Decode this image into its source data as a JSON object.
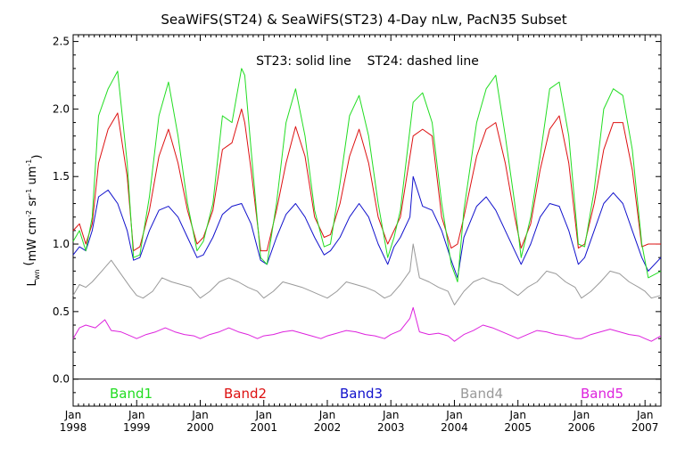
{
  "chart_data": {
    "type": "line",
    "title": "SeaWiFS(ST24) & SeaWiFS(ST23) 4-Day nLw, PacN35 Subset",
    "subtitle": "ST23: solid line    ST24: dashed line",
    "ylabel": "L_wn (mW cm^-2 sr^-1 um^-1)",
    "ylim": [
      -0.2,
      2.55
    ],
    "xlim": [
      1998.0,
      2007.25
    ],
    "yticks": [
      "0.0",
      "0.5",
      "1.0",
      "1.5",
      "2.0",
      "2.5"
    ],
    "xticks": [
      {
        "month": "Jan",
        "year": "1998"
      },
      {
        "month": "Jan",
        "year": "1999"
      },
      {
        "month": "Jan",
        "year": "2000"
      },
      {
        "month": "Jan",
        "year": "2001"
      },
      {
        "month": "Jan",
        "year": "2002"
      },
      {
        "month": "Jan",
        "year": "2003"
      },
      {
        "month": "Jan",
        "year": "2004"
      },
      {
        "month": "Jan",
        "year": "2005"
      },
      {
        "month": "Jan",
        "year": "2006"
      },
      {
        "month": "Jan",
        "year": "2007"
      }
    ],
    "reference_line_y": 0.0,
    "series": [
      {
        "name": "Band1",
        "color": "#22dd22",
        "x": [
          1998.0,
          1998.1,
          1998.2,
          1998.3,
          1998.4,
          1998.55,
          1998.7,
          1998.85,
          1998.95,
          1999.05,
          1999.2,
          1999.35,
          1999.5,
          1999.65,
          1999.8,
          1999.95,
          2000.05,
          2000.2,
          2000.35,
          2000.5,
          2000.65,
          2000.7,
          2000.8,
          2000.95,
          2001.05,
          2001.2,
          2001.35,
          2001.5,
          2001.65,
          2001.8,
          2001.95,
          2002.05,
          2002.2,
          2002.35,
          2002.5,
          2002.65,
          2002.8,
          2002.95,
          2003.05,
          2003.15,
          2003.35,
          2003.5,
          2003.65,
          2003.8,
          2003.95,
          2004.05,
          2004.15,
          2004.35,
          2004.5,
          2004.65,
          2004.8,
          2004.95,
          2005.05,
          2005.2,
          2005.35,
          2005.5,
          2005.65,
          2005.8,
          2005.95,
          2006.05,
          2006.2,
          2006.35,
          2006.5,
          2006.65,
          2006.8,
          2006.95,
          2007.05,
          2007.25
        ],
        "values": [
          1.02,
          1.1,
          0.95,
          1.2,
          1.95,
          2.15,
          2.28,
          1.6,
          0.9,
          0.92,
          1.35,
          1.95,
          2.2,
          1.8,
          1.3,
          0.95,
          1.02,
          1.3,
          1.95,
          1.9,
          2.3,
          2.25,
          1.7,
          0.9,
          0.85,
          1.3,
          1.9,
          2.15,
          1.8,
          1.25,
          0.98,
          1.0,
          1.45,
          1.95,
          2.1,
          1.8,
          1.3,
          0.9,
          1.05,
          1.25,
          2.05,
          2.12,
          1.9,
          1.3,
          0.85,
          0.72,
          1.25,
          1.9,
          2.15,
          2.25,
          1.8,
          1.3,
          0.9,
          1.2,
          1.65,
          2.15,
          2.2,
          1.8,
          1.0,
          0.98,
          1.4,
          2.0,
          2.15,
          2.1,
          1.7,
          1.0,
          0.75,
          0.8
        ]
      },
      {
        "name": "Band2",
        "color": "#dd1111",
        "x": [
          1998.0,
          1998.1,
          1998.2,
          1998.3,
          1998.4,
          1998.55,
          1998.7,
          1998.85,
          1998.95,
          1999.05,
          1999.2,
          1999.35,
          1999.5,
          1999.65,
          1999.8,
          1999.95,
          2000.05,
          2000.2,
          2000.35,
          2000.5,
          2000.65,
          2000.7,
          2000.8,
          2000.95,
          2001.05,
          2001.2,
          2001.35,
          2001.5,
          2001.65,
          2001.8,
          2001.95,
          2002.05,
          2002.2,
          2002.35,
          2002.5,
          2002.65,
          2002.8,
          2002.95,
          2003.05,
          2003.15,
          2003.35,
          2003.5,
          2003.65,
          2003.8,
          2003.95,
          2004.05,
          2004.15,
          2004.35,
          2004.5,
          2004.65,
          2004.8,
          2004.95,
          2005.05,
          2005.2,
          2005.35,
          2005.5,
          2005.65,
          2005.8,
          2005.95,
          2006.05,
          2006.2,
          2006.35,
          2006.5,
          2006.65,
          2006.8,
          2006.95,
          2007.05,
          2007.25
        ],
        "values": [
          1.1,
          1.15,
          1.0,
          1.15,
          1.6,
          1.85,
          1.97,
          1.5,
          0.95,
          0.98,
          1.25,
          1.65,
          1.85,
          1.6,
          1.25,
          1.0,
          1.05,
          1.25,
          1.7,
          1.75,
          2.0,
          1.9,
          1.55,
          0.95,
          0.95,
          1.25,
          1.6,
          1.87,
          1.65,
          1.2,
          1.05,
          1.07,
          1.3,
          1.65,
          1.85,
          1.6,
          1.2,
          1.0,
          1.1,
          1.2,
          1.8,
          1.85,
          1.8,
          1.2,
          0.97,
          1.0,
          1.2,
          1.65,
          1.85,
          1.9,
          1.6,
          1.2,
          0.97,
          1.15,
          1.55,
          1.85,
          1.95,
          1.6,
          0.97,
          1.0,
          1.3,
          1.7,
          1.9,
          1.9,
          1.55,
          0.98,
          1.0,
          1.0
        ]
      },
      {
        "name": "Band3",
        "color": "#1111cc",
        "x": [
          1998.0,
          1998.1,
          1998.2,
          1998.3,
          1998.4,
          1998.55,
          1998.7,
          1998.85,
          1998.95,
          1999.05,
          1999.2,
          1999.35,
          1999.5,
          1999.65,
          1999.8,
          1999.95,
          2000.05,
          2000.2,
          2000.35,
          2000.5,
          2000.65,
          2000.8,
          2000.95,
          2001.05,
          2001.2,
          2001.35,
          2001.5,
          2001.65,
          2001.8,
          2001.95,
          2002.05,
          2002.2,
          2002.35,
          2002.5,
          2002.65,
          2002.8,
          2002.95,
          2003.05,
          2003.15,
          2003.3,
          2003.35,
          2003.5,
          2003.65,
          2003.8,
          2003.95,
          2004.05,
          2004.15,
          2004.35,
          2004.5,
          2004.65,
          2004.8,
          2004.95,
          2005.05,
          2005.2,
          2005.35,
          2005.5,
          2005.65,
          2005.8,
          2005.95,
          2006.05,
          2006.2,
          2006.35,
          2006.5,
          2006.65,
          2006.8,
          2006.95,
          2007.05,
          2007.25
        ],
        "values": [
          0.92,
          0.98,
          0.95,
          1.1,
          1.35,
          1.4,
          1.3,
          1.1,
          0.88,
          0.9,
          1.1,
          1.25,
          1.28,
          1.2,
          1.05,
          0.9,
          0.92,
          1.05,
          1.22,
          1.28,
          1.3,
          1.15,
          0.88,
          0.85,
          1.05,
          1.22,
          1.3,
          1.2,
          1.05,
          0.92,
          0.95,
          1.05,
          1.2,
          1.3,
          1.2,
          1.0,
          0.85,
          0.98,
          1.05,
          1.2,
          1.5,
          1.28,
          1.25,
          1.1,
          0.88,
          0.75,
          1.05,
          1.28,
          1.35,
          1.25,
          1.1,
          0.95,
          0.85,
          1.0,
          1.2,
          1.3,
          1.28,
          1.1,
          0.85,
          0.9,
          1.1,
          1.3,
          1.38,
          1.3,
          1.1,
          0.9,
          0.8,
          0.9
        ]
      },
      {
        "name": "Band4",
        "color": "#999999",
        "x": [
          1998.0,
          1998.1,
          1998.2,
          1998.3,
          1998.45,
          1998.6,
          1998.75,
          1998.9,
          1999.0,
          1999.1,
          1999.25,
          1999.4,
          1999.55,
          1999.7,
          1999.85,
          2000.0,
          2000.15,
          2000.3,
          2000.45,
          2000.6,
          2000.75,
          2000.9,
          2001.0,
          2001.15,
          2001.3,
          2001.45,
          2001.6,
          2001.75,
          2001.9,
          2002.0,
          2002.15,
          2002.3,
          2002.45,
          2002.6,
          2002.75,
          2002.9,
          2003.0,
          2003.15,
          2003.3,
          2003.35,
          2003.45,
          2003.6,
          2003.75,
          2003.9,
          2004.0,
          2004.15,
          2004.3,
          2004.45,
          2004.6,
          2004.75,
          2004.9,
          2005.0,
          2005.15,
          2005.3,
          2005.45,
          2005.6,
          2005.75,
          2005.9,
          2006.0,
          2006.15,
          2006.3,
          2006.45,
          2006.6,
          2006.75,
          2006.9,
          2007.0,
          2007.1,
          2007.25
        ],
        "values": [
          0.62,
          0.7,
          0.68,
          0.72,
          0.8,
          0.88,
          0.78,
          0.68,
          0.62,
          0.6,
          0.65,
          0.75,
          0.72,
          0.7,
          0.68,
          0.6,
          0.65,
          0.72,
          0.75,
          0.72,
          0.68,
          0.65,
          0.6,
          0.65,
          0.72,
          0.7,
          0.68,
          0.65,
          0.62,
          0.6,
          0.65,
          0.72,
          0.7,
          0.68,
          0.65,
          0.6,
          0.62,
          0.7,
          0.8,
          1.0,
          0.75,
          0.72,
          0.68,
          0.65,
          0.55,
          0.65,
          0.72,
          0.75,
          0.72,
          0.7,
          0.65,
          0.62,
          0.68,
          0.72,
          0.8,
          0.78,
          0.72,
          0.68,
          0.6,
          0.65,
          0.72,
          0.8,
          0.78,
          0.72,
          0.68,
          0.65,
          0.6,
          0.62
        ]
      },
      {
        "name": "Band5",
        "color": "#dd22dd",
        "x": [
          1998.0,
          1998.1,
          1998.2,
          1998.35,
          1998.5,
          1998.6,
          1998.75,
          1998.9,
          1999.0,
          1999.15,
          1999.3,
          1999.45,
          1999.6,
          1999.75,
          1999.9,
          2000.0,
          2000.15,
          2000.3,
          2000.45,
          2000.6,
          2000.75,
          2000.9,
          2001.0,
          2001.15,
          2001.3,
          2001.45,
          2001.6,
          2001.75,
          2001.9,
          2002.0,
          2002.15,
          2002.3,
          2002.45,
          2002.6,
          2002.75,
          2002.9,
          2003.0,
          2003.15,
          2003.3,
          2003.35,
          2003.45,
          2003.6,
          2003.75,
          2003.9,
          2004.0,
          2004.15,
          2004.3,
          2004.45,
          2004.6,
          2004.75,
          2004.9,
          2005.0,
          2005.15,
          2005.3,
          2005.45,
          2005.6,
          2005.75,
          2005.9,
          2006.0,
          2006.15,
          2006.3,
          2006.45,
          2006.6,
          2006.75,
          2006.9,
          2007.0,
          2007.1,
          2007.25
        ],
        "values": [
          0.3,
          0.38,
          0.4,
          0.38,
          0.44,
          0.36,
          0.35,
          0.32,
          0.3,
          0.33,
          0.35,
          0.38,
          0.35,
          0.33,
          0.32,
          0.3,
          0.33,
          0.35,
          0.38,
          0.35,
          0.33,
          0.3,
          0.32,
          0.33,
          0.35,
          0.36,
          0.34,
          0.32,
          0.3,
          0.32,
          0.34,
          0.36,
          0.35,
          0.33,
          0.32,
          0.3,
          0.33,
          0.36,
          0.45,
          0.53,
          0.35,
          0.33,
          0.34,
          0.32,
          0.28,
          0.33,
          0.36,
          0.4,
          0.38,
          0.35,
          0.32,
          0.3,
          0.33,
          0.36,
          0.35,
          0.33,
          0.32,
          0.3,
          0.3,
          0.33,
          0.35,
          0.37,
          0.35,
          0.33,
          0.32,
          0.3,
          0.28,
          0.32
        ]
      }
    ]
  }
}
